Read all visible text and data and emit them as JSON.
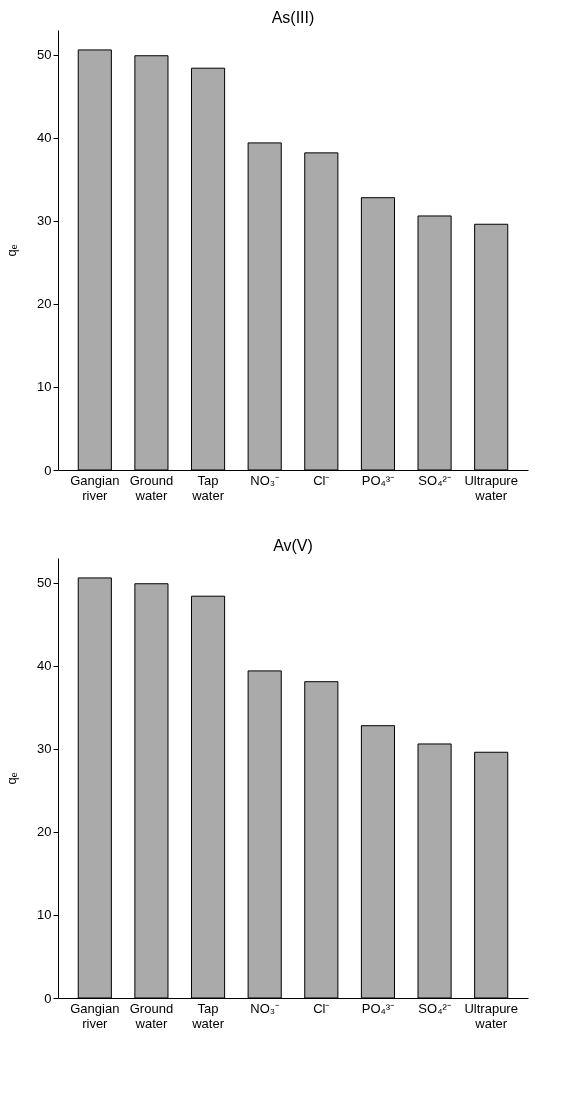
{
  "chart_data": [
    {
      "type": "bar",
      "title": "As(III)",
      "ylabel": "qₑ",
      "categories": [
        "Gangian river",
        "Ground water",
        "Tap water",
        "NO₃⁻",
        "Cl⁻",
        "PO₄³⁻",
        "SO₄²⁻",
        "Ultrapure water"
      ],
      "values": [
        50.6,
        49.9,
        48.4,
        39.4,
        38.2,
        32.8,
        30.6,
        29.6
      ],
      "color": "#aaaaaa",
      "ylim": [
        0,
        53
      ],
      "yticks": [
        0,
        10,
        20,
        30,
        40,
        50
      ],
      "grid": false
    },
    {
      "type": "bar",
      "title": "Av(V)",
      "ylabel": "qₑ",
      "categories": [
        "Gangian river",
        "Ground water",
        "Tap water",
        "NO₃⁻",
        "Cl⁻",
        "PO₄³⁻",
        "SO₄²⁻",
        "Ultrapure water"
      ],
      "values": [
        50.6,
        49.9,
        48.4,
        39.4,
        38.1,
        32.8,
        30.6,
        29.6
      ],
      "color": "#aaaaaa",
      "ylim": [
        0,
        53
      ],
      "yticks": [
        0,
        10,
        20,
        30,
        40,
        50
      ],
      "grid": false
    }
  ]
}
